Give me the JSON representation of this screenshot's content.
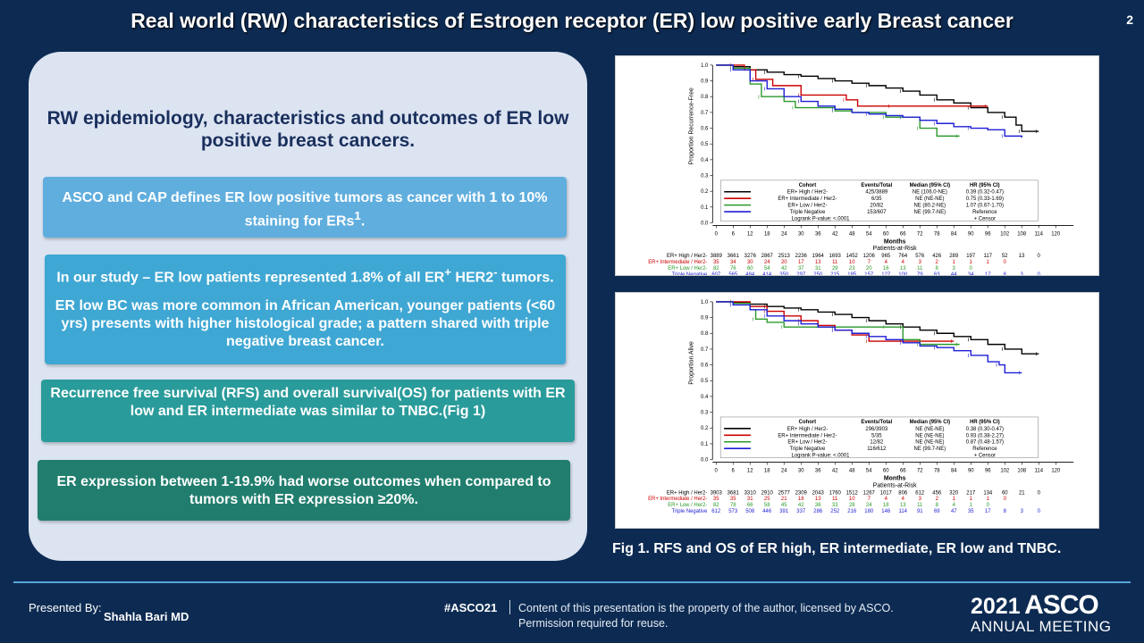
{
  "slide": {
    "title": "Real world (RW) characteristics of Estrogen receptor (ER) low positive early Breast cancer",
    "number": "2"
  },
  "left": {
    "heading": "RW epidemiology, characteristics and outcomes of ER low positive breast cancers.",
    "box1": "ASCO and CAP defines ER low positive tumors as cancer with 1 to 10% staining for ERs",
    "box1_sup": "1",
    "box1_end": ".",
    "box2_a": "In our study – ER low patients represented 1.8% of all ER",
    "box2_sup1": "+",
    "box2_b": " HER2",
    "box2_sup2": "-",
    "box2_c": " tumors.",
    "box2_second": "ER low BC was more common in African American, younger patients (<60 yrs) presents with higher histological grade; a pattern shared with triple negative breast cancer.",
    "box3": "Recurrence free survival (RFS) and overall survival(OS) for patients with ER low and ER intermediate was similar to TNBC.(Fig 1)",
    "box4": "ER expression between 1-19.9% had worse outcomes when compared to tumors with ER expression ≥20%."
  },
  "figure": {
    "caption": "Fig 1. RFS and OS of ER high, ER intermediate, ER low and TNBC."
  },
  "footer": {
    "presented_label": "Presented By:",
    "presenter": "Shahla Bari MD",
    "hashtag": "#ASCO21",
    "copyright": "Content of this presentation is the property of the author, licensed by ASCO. Permission required for reuse.",
    "logo_year": "2021",
    "logo_name": "ASCO",
    "logo_meeting": "ANNUAL MEETING"
  },
  "chart_data": [
    {
      "type": "line",
      "ylabel": "Proportion Recurrence-Free",
      "xlabel": "Months",
      "xlim": [
        0,
        120
      ],
      "ylim": [
        0,
        1.0
      ],
      "x_ticks": [
        0,
        6,
        12,
        18,
        24,
        30,
        36,
        42,
        48,
        54,
        60,
        66,
        72,
        78,
        84,
        90,
        96,
        102,
        108,
        114,
        120
      ],
      "y_ticks": [
        "0.0",
        "0.1",
        "0.2",
        "0.3",
        "0.4",
        "0.5",
        "0.6",
        "0.7",
        "0.8",
        "0.9",
        "1.0"
      ],
      "series": [
        {
          "name": "ER+ High / Her2-",
          "color": "#000000",
          "x": [
            0,
            6,
            12,
            18,
            24,
            30,
            36,
            42,
            48,
            54,
            60,
            66,
            72,
            78,
            84,
            90,
            96,
            102,
            106,
            108,
            110,
            114
          ],
          "y": [
            1.0,
            0.99,
            0.97,
            0.955,
            0.94,
            0.93,
            0.915,
            0.9,
            0.885,
            0.87,
            0.855,
            0.835,
            0.81,
            0.78,
            0.76,
            0.73,
            0.7,
            0.67,
            0.62,
            0.58,
            0.58,
            0.58
          ]
        },
        {
          "name": "ER+ Intermediate / Her2-",
          "color": "#cc0000",
          "x": [
            0,
            6,
            10,
            14,
            20,
            30,
            40,
            46,
            50,
            62,
            70,
            96
          ],
          "y": [
            1.0,
            1.0,
            0.97,
            0.91,
            0.87,
            0.81,
            0.81,
            0.78,
            0.74,
            0.74,
            0.74,
            0.74
          ]
        },
        {
          "name": "ER+ Low / Her2-",
          "color": "#2b9a2b",
          "x": [
            0,
            6,
            12,
            16,
            24,
            28,
            36,
            42,
            48,
            60,
            66,
            72,
            78,
            86
          ],
          "y": [
            1.0,
            0.98,
            0.88,
            0.8,
            0.77,
            0.73,
            0.73,
            0.71,
            0.7,
            0.67,
            0.67,
            0.6,
            0.55,
            0.55
          ]
        },
        {
          "name": "Triple Negative",
          "color": "#1f1fd6",
          "x": [
            0,
            6,
            12,
            18,
            24,
            30,
            36,
            42,
            48,
            54,
            60,
            66,
            72,
            78,
            84,
            90,
            96,
            102,
            108
          ],
          "y": [
            1.0,
            0.97,
            0.9,
            0.85,
            0.8,
            0.77,
            0.74,
            0.72,
            0.7,
            0.69,
            0.68,
            0.67,
            0.65,
            0.63,
            0.61,
            0.6,
            0.59,
            0.55,
            0.54
          ]
        }
      ],
      "legend": {
        "headers": [
          "Cohort",
          "Events/Total",
          "Median (95% CI)",
          "HR (95% CI)"
        ],
        "rows": [
          [
            "ER+ High / Her2-",
            "425/3889",
            "NE (106.0-NE)",
            "0.39 (0.32-0.47)"
          ],
          [
            "ER+ Intermediate / Her2-",
            "6/35",
            "NE (NE-NE)",
            "0.75 (0.33-1.69)"
          ],
          [
            "ER+ Low / Her2-",
            "20/82",
            "NE (80.2-NE)",
            "1.07 (0.67-1.70)"
          ],
          [
            "Triple Negative",
            "153/607",
            "NE (99.7-NE)",
            "Reference"
          ]
        ],
        "pvalue": "Logrank P-value: <.0001",
        "censor": "+ Censor"
      },
      "risk_title": "Patients-at-Risk",
      "risk": [
        {
          "name": "ER+ High / Her2-",
          "color": "#000000",
          "values": [
            "3889",
            "3661",
            "3276",
            "2867",
            "2513",
            "2236",
            "1964",
            "1693",
            "1452",
            "1206",
            "965",
            "764",
            "576",
            "426",
            "289",
            "197",
            "117",
            "52",
            "13",
            "0"
          ]
        },
        {
          "name": "ER+ Intermediate / Her2-",
          "color": "#cc0000",
          "values": [
            "35",
            "34",
            "30",
            "24",
            "20",
            "17",
            "13",
            "11",
            "10",
            "7",
            "4",
            "4",
            "3",
            "2",
            "1",
            "1",
            "1",
            "0"
          ]
        },
        {
          "name": "ER+ Low / Her2-",
          "color": "#2b9a2b",
          "values": [
            "82",
            "76",
            "60",
            "54",
            "42",
            "37",
            "31",
            "29",
            "23",
            "20",
            "16",
            "13",
            "11",
            "8",
            "3",
            "0"
          ]
        },
        {
          "name": "Triple Negative",
          "color": "#1f1fd6",
          "values": [
            "607",
            "565",
            "484",
            "414",
            "350",
            "297",
            "250",
            "215",
            "185",
            "157",
            "127",
            "100",
            "79",
            "63",
            "44",
            "34",
            "17",
            "8",
            "3",
            "0"
          ]
        }
      ]
    },
    {
      "type": "line",
      "ylabel": "Proportion Alive",
      "xlabel": "Months",
      "xlim": [
        0,
        120
      ],
      "ylim": [
        0,
        1.0
      ],
      "x_ticks": [
        0,
        6,
        12,
        18,
        24,
        30,
        36,
        42,
        48,
        54,
        60,
        66,
        72,
        78,
        84,
        90,
        96,
        102,
        108,
        114,
        120
      ],
      "y_ticks": [
        "0.0",
        "0.1",
        "0.2",
        "0.3",
        "0.4",
        "0.5",
        "0.6",
        "0.7",
        "0.8",
        "0.9",
        "1.0"
      ],
      "series": [
        {
          "name": "ER+ High / Her2-",
          "color": "#000000",
          "x": [
            0,
            6,
            12,
            18,
            24,
            30,
            36,
            42,
            48,
            54,
            60,
            66,
            72,
            78,
            84,
            90,
            96,
            102,
            108,
            114
          ],
          "y": [
            1.0,
            0.995,
            0.985,
            0.97,
            0.96,
            0.95,
            0.935,
            0.92,
            0.9,
            0.88,
            0.86,
            0.84,
            0.82,
            0.8,
            0.78,
            0.76,
            0.73,
            0.7,
            0.67,
            0.67
          ]
        },
        {
          "name": "ER+ Intermediate / Her2-",
          "color": "#cc0000",
          "x": [
            0,
            6,
            12,
            18,
            24,
            30,
            36,
            42,
            48,
            54,
            60,
            66,
            72,
            84
          ],
          "y": [
            1.0,
            1.0,
            0.97,
            0.94,
            0.91,
            0.88,
            0.85,
            0.82,
            0.79,
            0.75,
            0.75,
            0.75,
            0.75,
            0.75
          ]
        },
        {
          "name": "ER+ Low / Her2-",
          "color": "#2b9a2b",
          "x": [
            0,
            6,
            12,
            14,
            18,
            24,
            30,
            42,
            54,
            60,
            66,
            72,
            80,
            86
          ],
          "y": [
            1.0,
            0.99,
            0.95,
            0.89,
            0.87,
            0.84,
            0.84,
            0.84,
            0.84,
            0.84,
            0.76,
            0.73,
            0.73,
            0.73
          ]
        },
        {
          "name": "Triple Negative",
          "color": "#1f1fd6",
          "x": [
            0,
            6,
            12,
            18,
            24,
            30,
            36,
            42,
            48,
            54,
            60,
            66,
            72,
            78,
            84,
            90,
            96,
            100,
            102,
            108
          ],
          "y": [
            1.0,
            0.98,
            0.95,
            0.91,
            0.88,
            0.86,
            0.84,
            0.82,
            0.8,
            0.78,
            0.76,
            0.74,
            0.72,
            0.71,
            0.69,
            0.66,
            0.62,
            0.6,
            0.55,
            0.55
          ]
        }
      ],
      "legend": {
        "headers": [
          "Cohort",
          "Events/Total",
          "Median (95% CI)",
          "HR (95% CI)"
        ],
        "rows": [
          [
            "ER+ High / Her2-",
            "296/3903",
            "NE (NE-NE)",
            "0.38 (0.30-0.47)"
          ],
          [
            "ER+ Intermediate / Her2-",
            "5/35",
            "NE (NE-NE)",
            "0.93 (0.38-2.27)"
          ],
          [
            "ER+ Low / Her2-",
            "12/82",
            "NE (NE-NE)",
            "0.87 (0.48-1.57)"
          ],
          [
            "Triple Negative",
            "116/612",
            "NE (99.7-NE)",
            "Reference"
          ]
        ],
        "pvalue": "Logrank P-value: <.0001",
        "censor": "+ Censor"
      },
      "risk_title": "Patients-at-Risk",
      "risk": [
        {
          "name": "ER+ High / Her2-",
          "color": "#000000",
          "values": [
            "3903",
            "3681",
            "3310",
            "2910",
            "2577",
            "2309",
            "2043",
            "1760",
            "1512",
            "1267",
            "1017",
            "806",
            "612",
            "456",
            "320",
            "217",
            "134",
            "60",
            "21",
            "0"
          ]
        },
        {
          "name": "ER+ Intermediate / Her2-",
          "color": "#cc0000",
          "values": [
            "35",
            "35",
            "31",
            "25",
            "21",
            "18",
            "13",
            "11",
            "10",
            "7",
            "4",
            "4",
            "3",
            "2",
            "1",
            "1",
            "1",
            "0"
          ]
        },
        {
          "name": "ER+ Low / Her2-",
          "color": "#2b9a2b",
          "values": [
            "82",
            "78",
            "66",
            "58",
            "45",
            "42",
            "36",
            "33",
            "28",
            "24",
            "18",
            "13",
            "11",
            "8",
            "4",
            "1",
            "0"
          ]
        },
        {
          "name": "Triple Negative",
          "color": "#1f1fd6",
          "values": [
            "612",
            "573",
            "508",
            "446",
            "391",
            "337",
            "286",
            "252",
            "216",
            "180",
            "146",
            "114",
            "91",
            "69",
            "47",
            "35",
            "17",
            "8",
            "3",
            "0"
          ]
        }
      ]
    }
  ]
}
